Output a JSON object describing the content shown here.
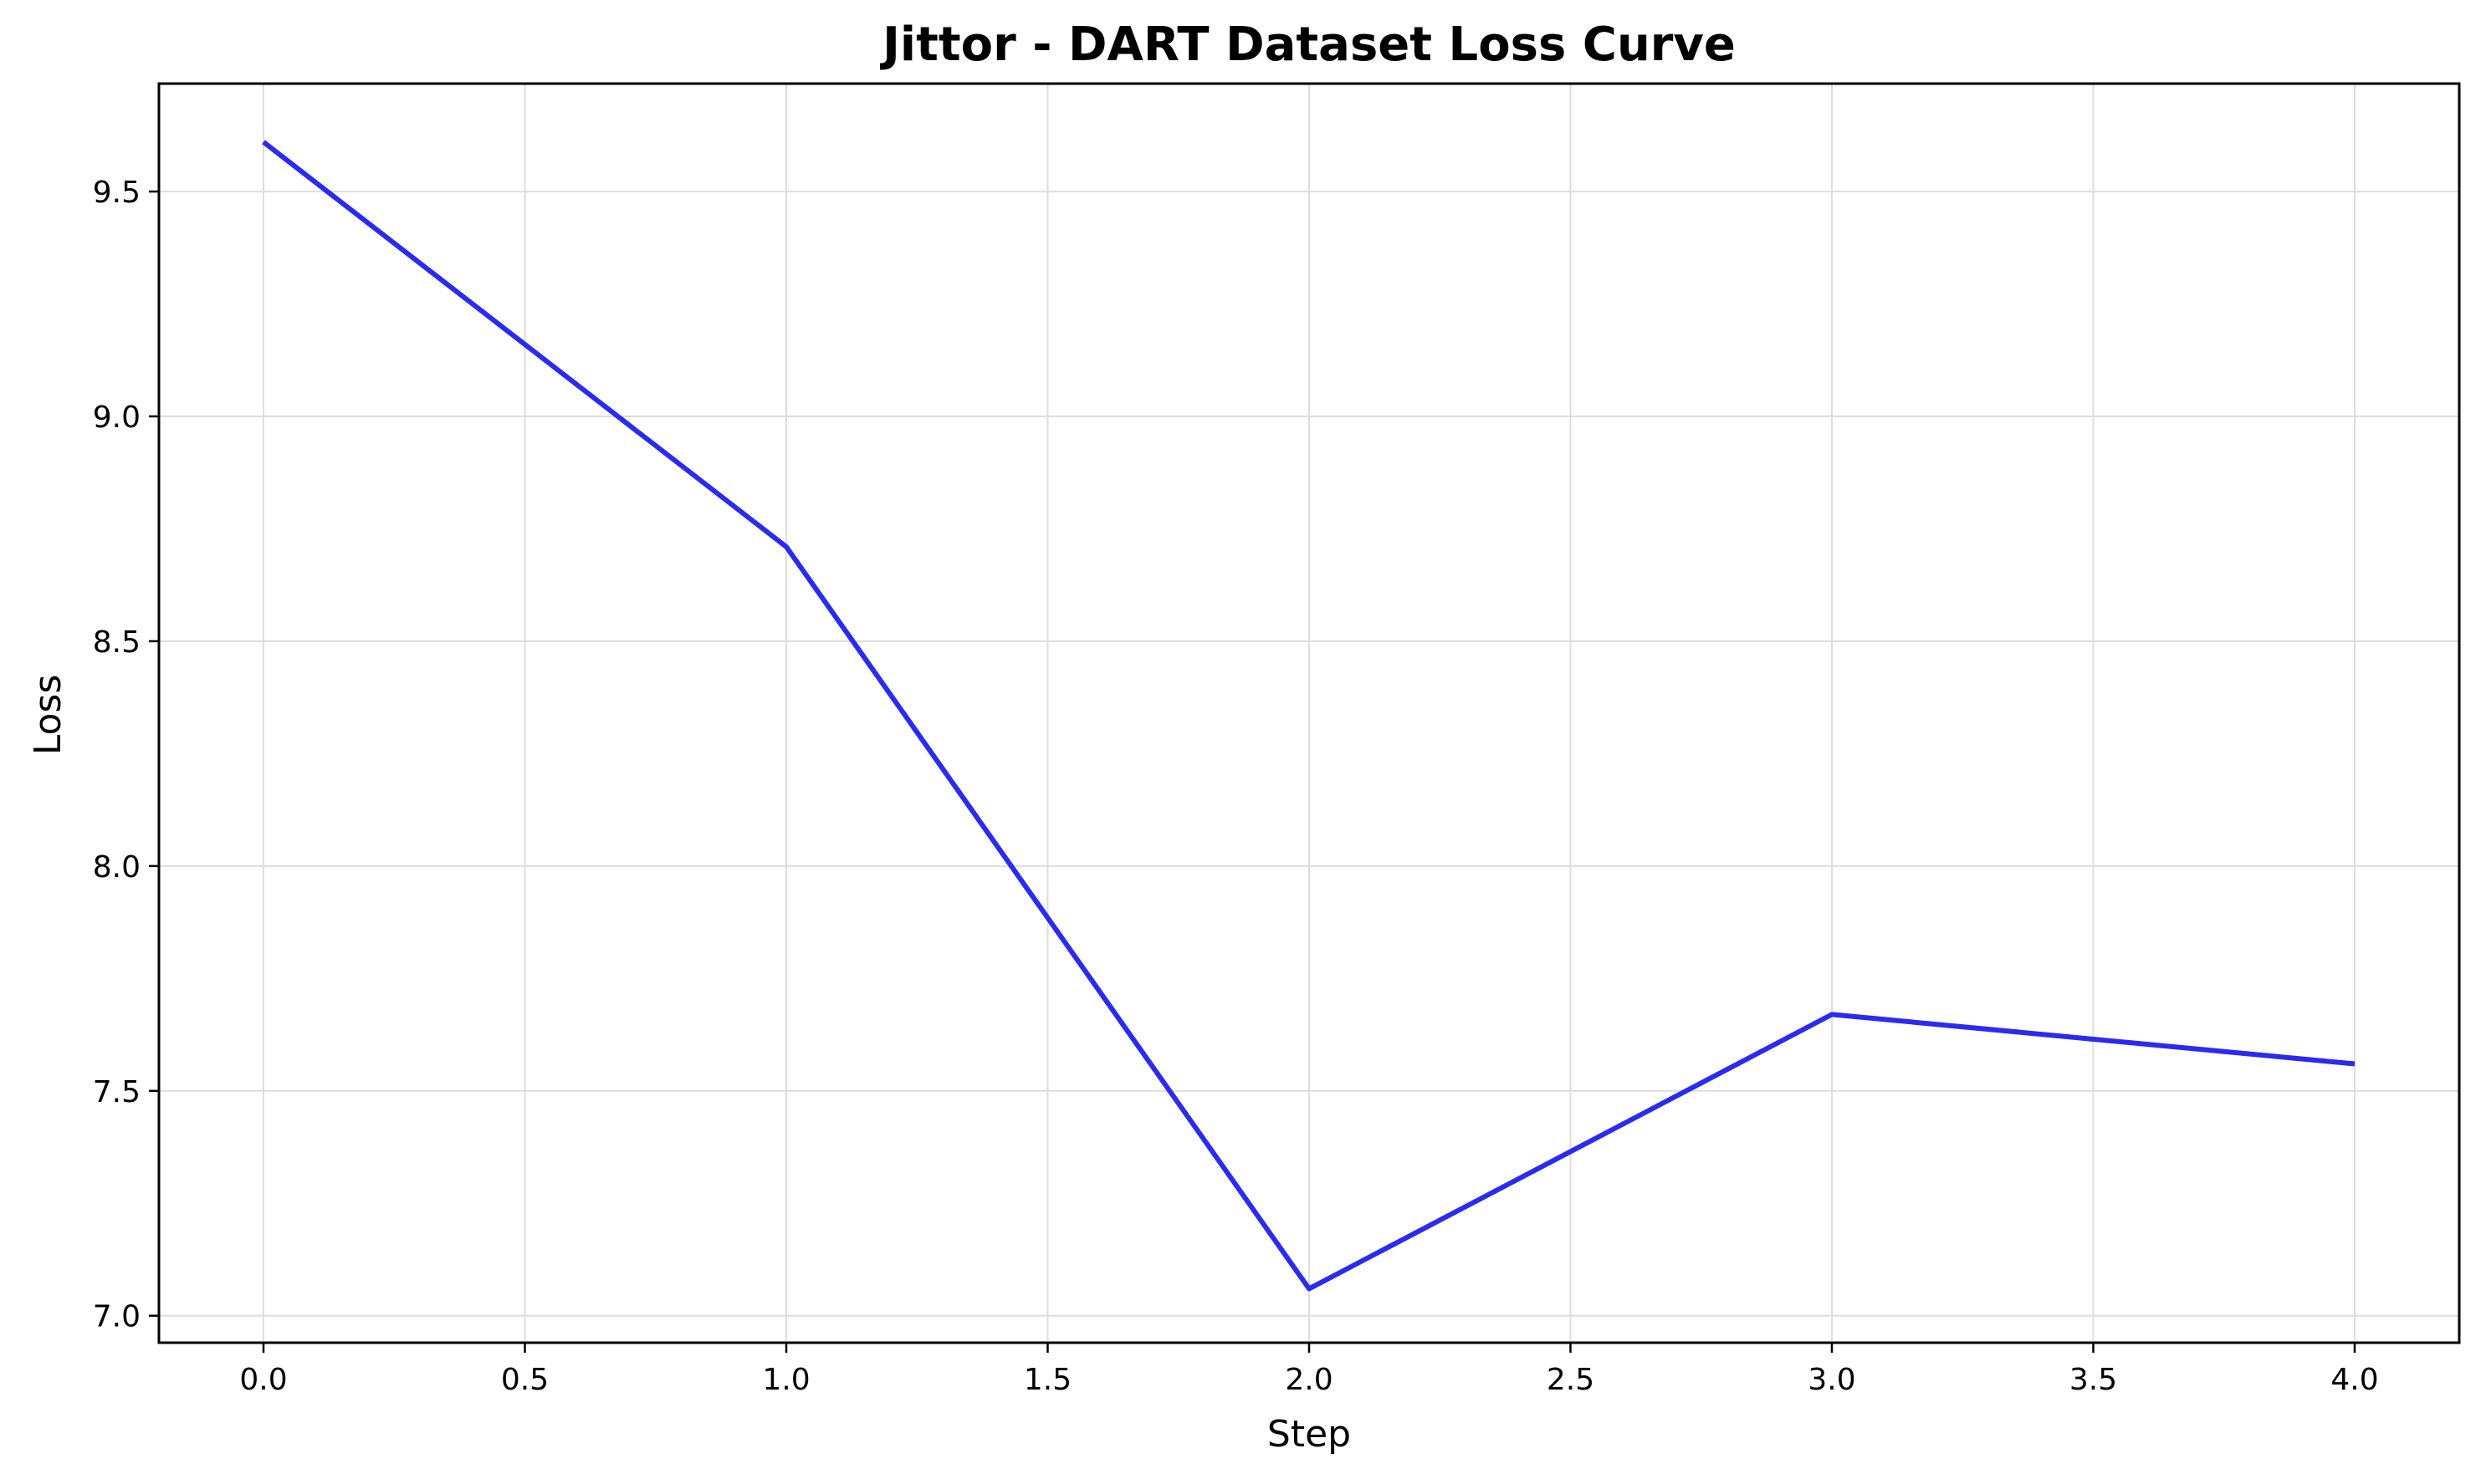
{
  "chart_data": {
    "type": "line",
    "title": "Jittor - DART Dataset Loss Curve",
    "xlabel": "Step",
    "ylabel": "Loss",
    "x": [
      0,
      1,
      2,
      3,
      4
    ],
    "series": [
      {
        "values": [
          9.61,
          8.71,
          7.06,
          7.67,
          7.56
        ],
        "color": "#2b2bf0"
      }
    ],
    "xlim": [
      -0.2,
      4.2
    ],
    "ylim": [
      6.94,
      9.74
    ],
    "xticks": [
      "0.0",
      "0.5",
      "1.0",
      "1.5",
      "2.0",
      "2.5",
      "3.0",
      "3.5",
      "4.0"
    ],
    "xtick_values": [
      0,
      0.5,
      1,
      1.5,
      2,
      2.5,
      3,
      3.5,
      4
    ],
    "yticks": [
      "7.0",
      "7.5",
      "8.0",
      "8.5",
      "9.0",
      "9.5"
    ],
    "ytick_values": [
      7,
      7.5,
      8,
      8.5,
      9,
      9.5
    ],
    "grid": true,
    "grid_color": "#dddddd",
    "axis_color": "#000000"
  }
}
